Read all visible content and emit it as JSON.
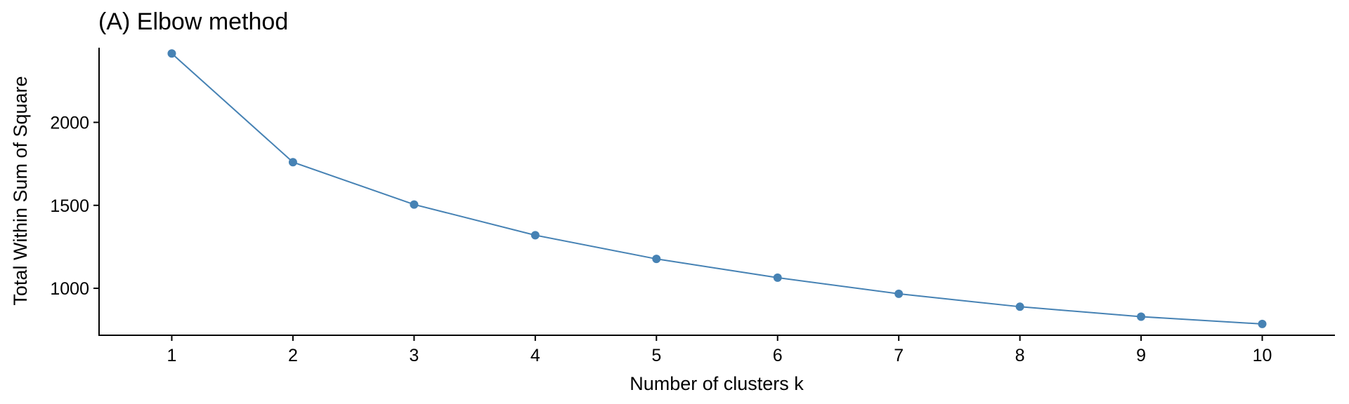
{
  "chart_data": {
    "type": "line",
    "title": "(A) Elbow method",
    "xlabel": "Number of clusters k",
    "ylabel": "Total Within Sum of Square",
    "x": [
      1,
      2,
      3,
      4,
      5,
      6,
      7,
      8,
      9,
      10
    ],
    "x_tick_labels": [
      "1",
      "2",
      "3",
      "4",
      "5",
      "6",
      "7",
      "8",
      "9",
      "10"
    ],
    "series": [
      {
        "values": [
          2415,
          1760,
          1505,
          1320,
          1177,
          1064,
          967,
          889,
          829,
          785
        ],
        "color": "#4682B4"
      }
    ],
    "y_ticks": [
      1000,
      1500,
      2000
    ],
    "y_tick_labels": [
      "1000",
      "1500",
      "2000"
    ],
    "xlim": [
      0.4,
      10.6
    ],
    "ylim": [
      717,
      2450
    ],
    "grid": false,
    "legend": "none",
    "markers": true
  }
}
